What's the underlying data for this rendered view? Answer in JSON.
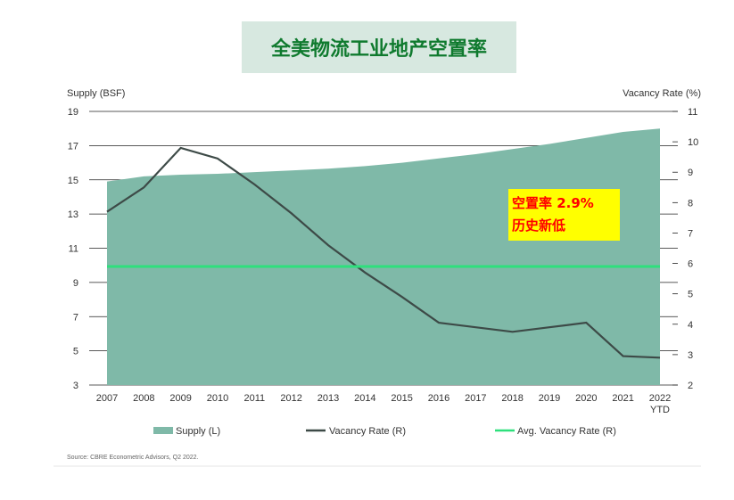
{
  "title": "全美物流工业地产空置率",
  "callout": {
    "line1": "空置率 2.9%",
    "line2": "历史新低"
  },
  "colors": {
    "supply": "#7fb9a8",
    "vacancy": "#3d4a47",
    "avg": "#2ee07c",
    "title_bg": "#d7e8e0",
    "title_text": "#0f7a2e",
    "callout_bg": "#ffff00",
    "callout_text": "#ff0000"
  },
  "chart_data": {
    "type": "area",
    "categories": [
      "2007",
      "2008",
      "2009",
      "2010",
      "2011",
      "2012",
      "2013",
      "2014",
      "2015",
      "2016",
      "2017",
      "2018",
      "2019",
      "2020",
      "2021",
      "2022 YTD"
    ],
    "y_left_label": "Supply (BSF)",
    "y_right_label": "Vacancy Rate (%)",
    "y_left_ticks": [
      3,
      5,
      7,
      9,
      11,
      13,
      15,
      17,
      19
    ],
    "y_right_ticks": [
      2,
      3,
      4,
      5,
      6,
      7,
      8,
      9,
      10,
      11
    ],
    "ylim_left": [
      3,
      19
    ],
    "ylim_right": [
      2,
      11
    ],
    "series": [
      {
        "name": "Supply (L)",
        "type": "area",
        "axis": "left",
        "values": [
          14.9,
          15.2,
          15.3,
          15.35,
          15.45,
          15.55,
          15.65,
          15.8,
          16.0,
          16.25,
          16.5,
          16.8,
          17.1,
          17.45,
          17.8,
          18.0
        ]
      },
      {
        "name": "Vacancy Rate (R)",
        "type": "line",
        "axis": "right",
        "values": [
          7.7,
          8.5,
          9.8,
          9.45,
          8.6,
          7.65,
          6.6,
          5.7,
          4.9,
          4.05,
          3.9,
          3.75,
          3.9,
          4.05,
          2.95,
          2.9
        ]
      },
      {
        "name": "Avg. Vacancy Rate (R)",
        "type": "line",
        "axis": "right",
        "values": [
          5.9,
          5.9,
          5.9,
          5.9,
          5.9,
          5.9,
          5.9,
          5.9,
          5.9,
          5.9,
          5.9,
          5.9,
          5.9,
          5.9,
          5.9,
          5.9
        ]
      }
    ],
    "legend": [
      "Supply (L)",
      "Vacancy Rate (R)",
      "Avg. Vacancy Rate (R)"
    ],
    "legend_position": "bottom",
    "source": "Source: CBRE Econometric Advisors, Q2 2022."
  }
}
